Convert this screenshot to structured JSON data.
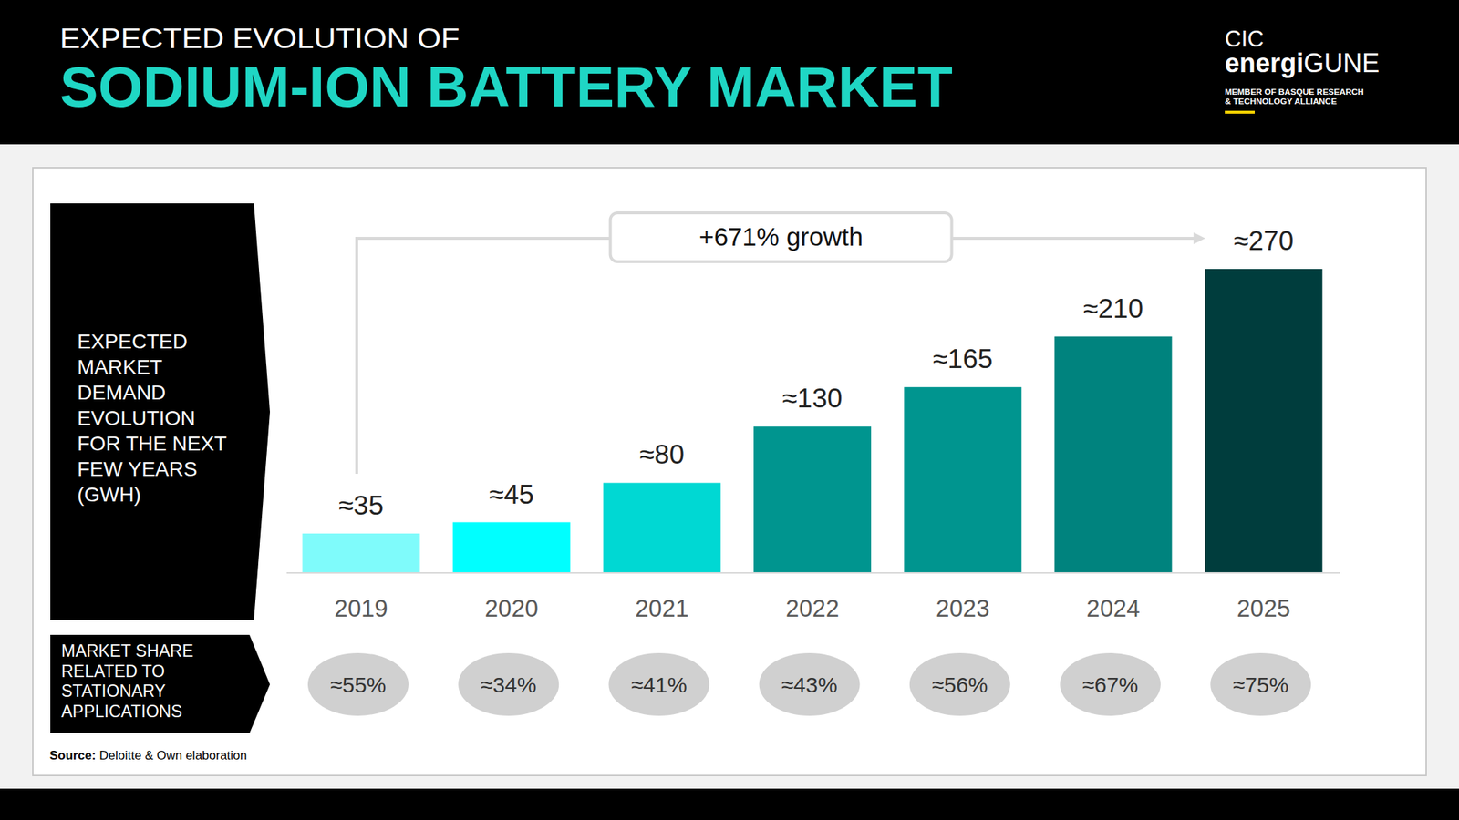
{
  "header": {
    "subtitle": "EXPECTED EVOLUTION OF",
    "title": "SODIUM-ION BATTERY MARKET"
  },
  "logo": {
    "name": "CIC",
    "brand_bold": "energi",
    "brand": "GUNE",
    "tagline": [
      "MEMBER OF BASQUE RESEARCH",
      "& TECHNOLOGY ALLIANCE"
    ]
  },
  "chart_data": {
    "type": "bar",
    "ylabel": "EXPECTED MARKET DEMAND EVOLUTION FOR THE NEXT FEW YEARS (GWH)",
    "categories": [
      "2019",
      "2020",
      "2021",
      "2022",
      "2023",
      "2024",
      "2025"
    ],
    "values": [
      35,
      45,
      80,
      130,
      165,
      210,
      270
    ],
    "value_labels": [
      "≈35",
      "≈45",
      "≈80",
      "≈130",
      "≈165",
      "≈210",
      "≈270"
    ],
    "colors": [
      "#7ffbfb",
      "#00ffff",
      "#00d8d3",
      "#00958f",
      "#00958f",
      "#00837e",
      "#003d3d"
    ],
    "ylim": [
      0,
      270
    ],
    "data_labels": true,
    "tick_labels": "x",
    "grid": false,
    "annotation": "+671% growth",
    "stationary_share": {
      "label": "MARKET SHARE RELATED TO STATIONARY APPLICATIONS",
      "values": [
        55,
        34,
        41,
        43,
        56,
        67,
        75
      ],
      "value_labels": [
        "≈55%",
        "≈34%",
        "≈41%",
        "≈43%",
        "≈56%",
        "≈67%",
        "≈75%"
      ]
    }
  },
  "source": {
    "label": "Source:",
    "text": "Deloitte & Own elaboration"
  }
}
